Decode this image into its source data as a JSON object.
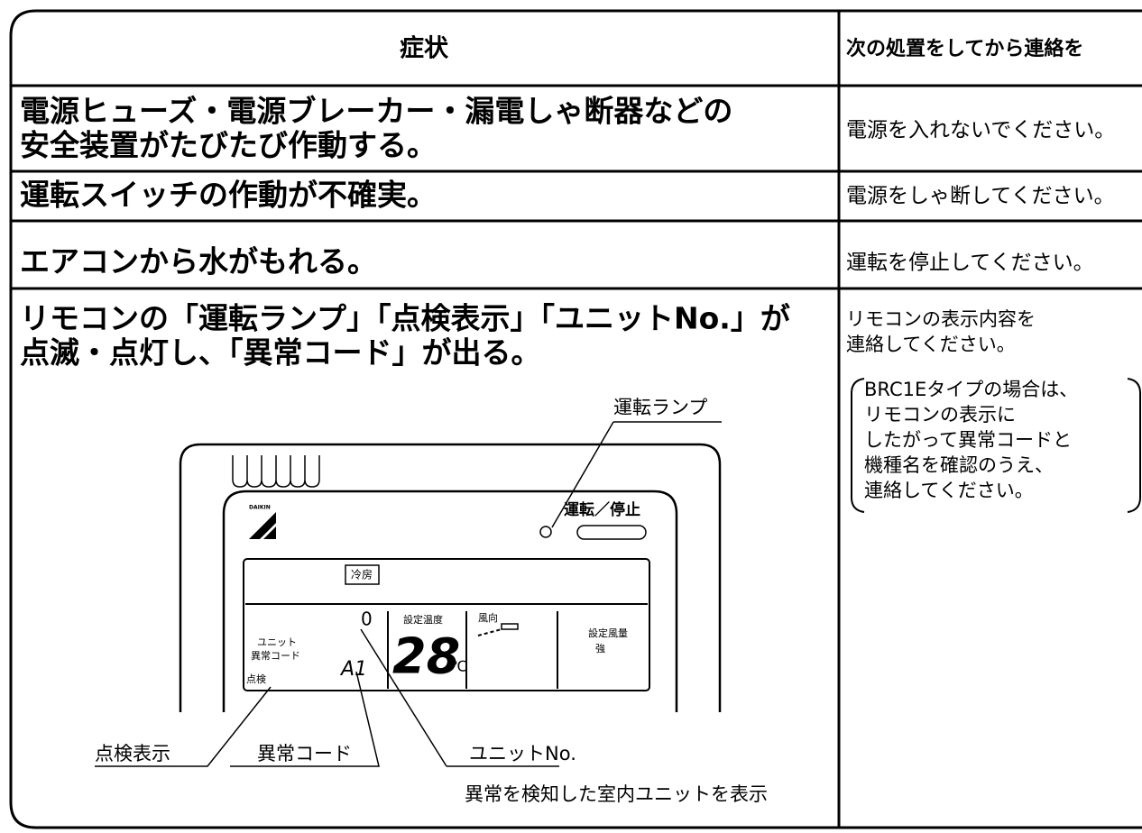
{
  "header": {
    "symptom": "症状",
    "action": "次の処置をしてから連絡を"
  },
  "rows": [
    {
      "symptom": [
        "電源ヒューズ・電源ブレーカー・漏電しゃ断器などの",
        "安全装置がたびたび作動する。"
      ],
      "action": [
        "電源を入れないでください。"
      ]
    },
    {
      "symptom": [
        "運転スイッチの作動が不確実。"
      ],
      "action": [
        "電源をしゃ断してください。"
      ]
    },
    {
      "symptom": [
        "エアコンから水がもれる。"
      ],
      "action": [
        "運転を停止してください。"
      ]
    },
    {
      "symptom": [
        "リモコンの「運転ランプ」「点検表示」「ユニットNo.」が",
        "点滅・点灯し、「異常コード」が出る。"
      ],
      "action": [
        "リモコンの表示内容を",
        "連絡してください。"
      ],
      "note": [
        "BRC1Eタイプの場合は、",
        "リモコンの表示に",
        "したがって異常コードと",
        "機種名を確認のうえ、",
        "連絡してください。"
      ]
    }
  ],
  "diagram": {
    "lamp": "運転ランプ",
    "button": "運転／停止",
    "brand": "DAIKIN",
    "mode": "冷房",
    "unit_no": "0",
    "set_temp": "設定温度",
    "temp": "28",
    "temp_unit": "℃",
    "wind_dir": "風向",
    "fan": "設定風量",
    "fan_level": "強",
    "unit": "ユニット",
    "code_label": "異常コード",
    "check": "点検",
    "code": "A1",
    "callouts": {
      "check_display": "点検表示",
      "error_code": "異常コード",
      "unit_no": "ユニットNo.",
      "unit_desc": "異常を検知した室内ユニットを表示"
    }
  }
}
